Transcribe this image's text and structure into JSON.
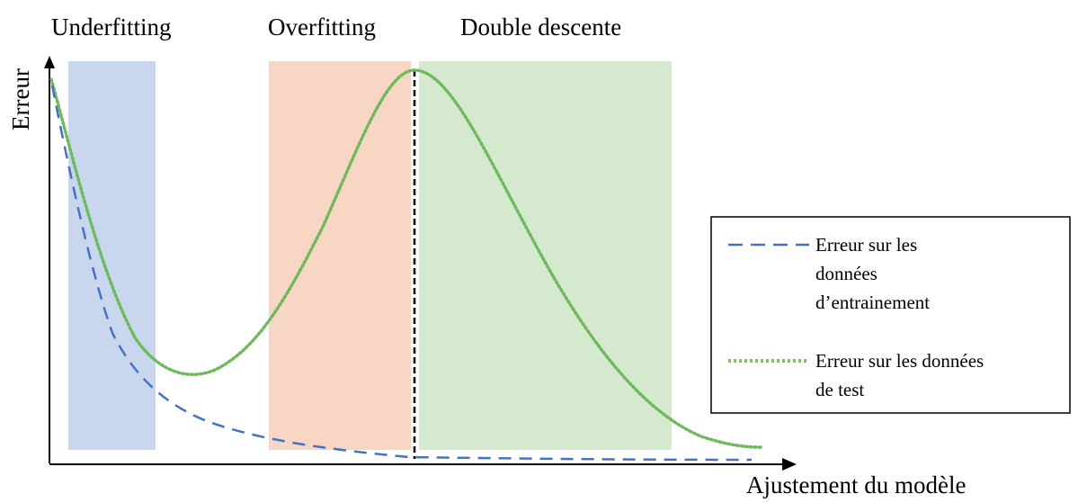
{
  "regions": [
    {
      "label": "Underfitting",
      "color": "#c9d7ee"
    },
    {
      "label": "Overfitting",
      "color": "#f7d6c3"
    },
    {
      "label": "Double descente",
      "color": "#d5e9cf"
    }
  ],
  "axes": {
    "y_label": "Erreur",
    "x_label": "Ajustement du modèle"
  },
  "legend": {
    "position": "right",
    "items": [
      {
        "lines": [
          "Erreur sur les",
          "données",
          "d’entrainement"
        ],
        "style": "dashed",
        "color": "#4472c4"
      },
      {
        "lines": [
          "Erreur sur les données",
          "de test"
        ],
        "style": "dotted",
        "color": "#7fc06a"
      }
    ]
  },
  "curves": {
    "train_color": "#4472c4",
    "test_color": "#6dba5a",
    "threshold_color": "#000000"
  }
}
